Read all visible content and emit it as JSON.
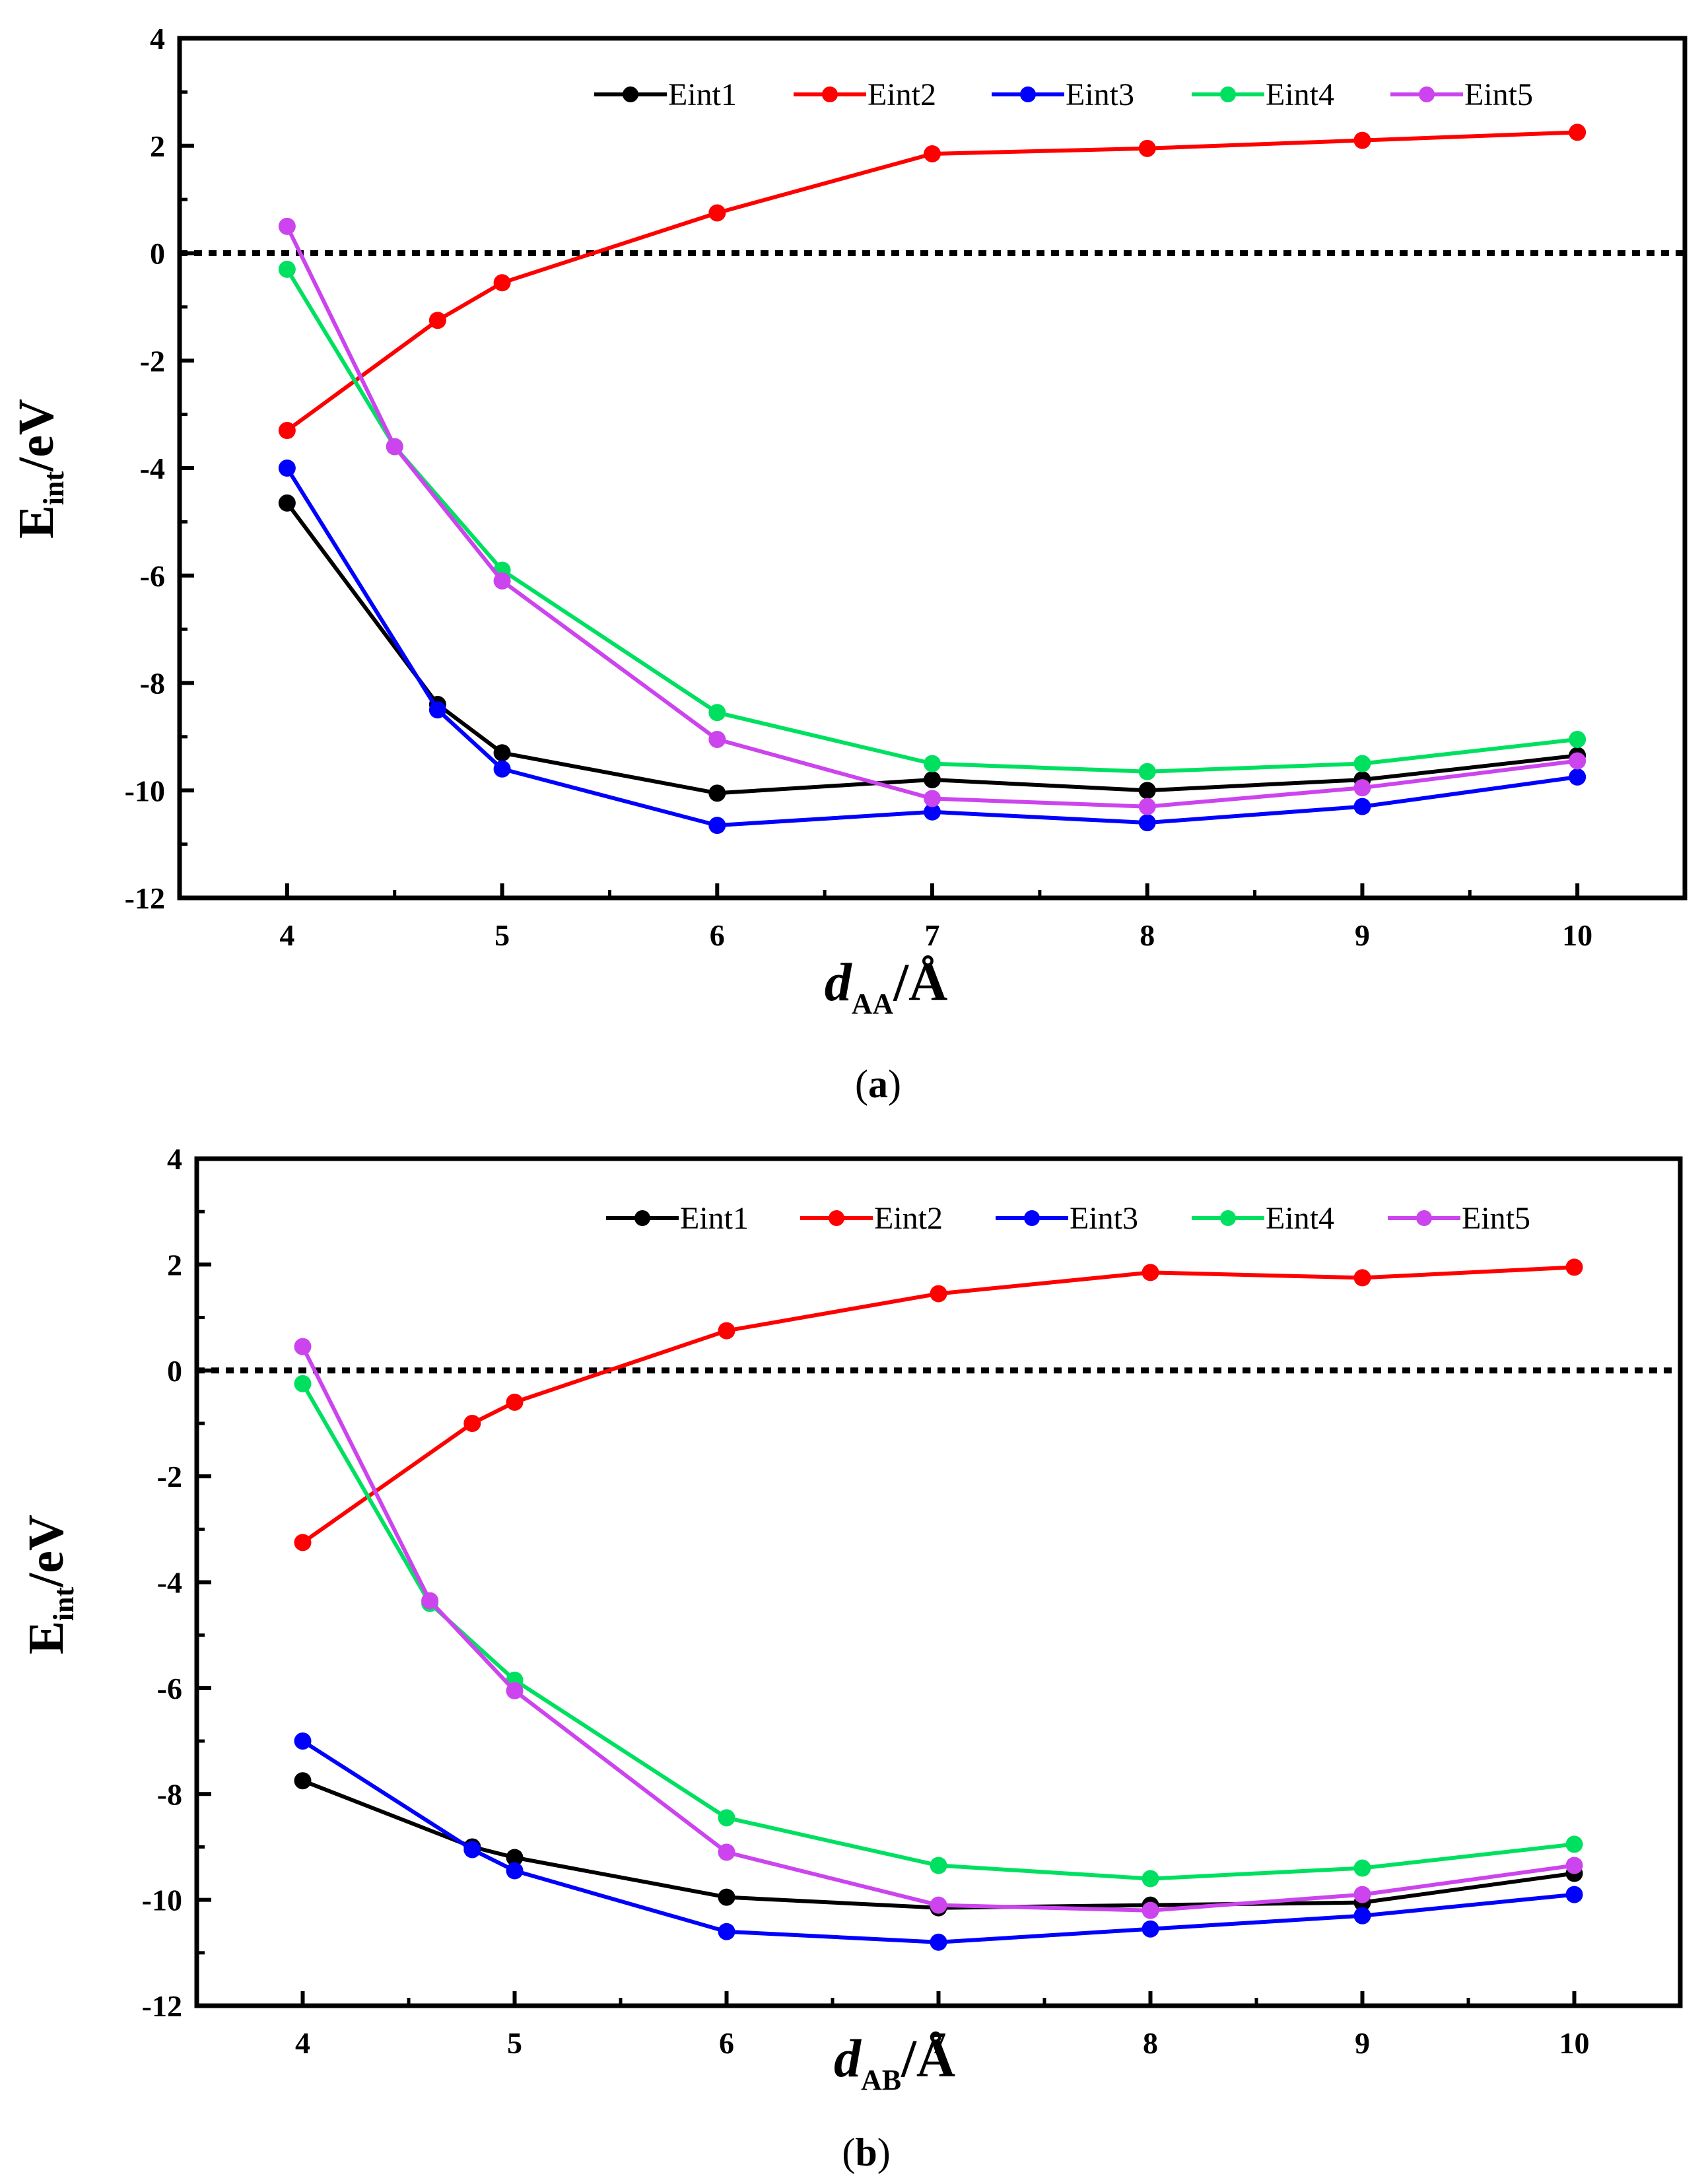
{
  "chart_data": [
    {
      "type": "line",
      "panel_label": "(a)",
      "caption_open": "(",
      "caption_letter": "a",
      "caption_close": ")",
      "xlabel_main": "d",
      "xlabel_sub": "AA",
      "xlabel_unit": "/Å",
      "ylabel_main": "E",
      "ylabel_sub": "int",
      "ylabel_unit": "/eV",
      "xlim": [
        3.5,
        10.5
      ],
      "ylim": [
        -12,
        4
      ],
      "xticks": [
        "4",
        "5",
        "6",
        "7",
        "8",
        "9",
        "10"
      ],
      "yticks": [
        "4",
        "2",
        "0",
        "-2",
        "-4",
        "-6",
        "-8",
        "-10",
        "-12"
      ],
      "reference_line": 0,
      "series": [
        {
          "name": "Eint1",
          "color": "#000000",
          "x": [
            4,
            4.7,
            5,
            6,
            7,
            8,
            9,
            10
          ],
          "values": [
            -4.65,
            -8.4,
            -9.3,
            -10.05,
            -9.8,
            -10.0,
            -9.8,
            -9.35
          ]
        },
        {
          "name": "Eint2",
          "color": "#ff0000",
          "x": [
            4,
            4.7,
            5,
            6,
            7,
            8,
            9,
            10
          ],
          "values": [
            -3.3,
            -1.25,
            -0.55,
            0.75,
            1.85,
            1.95,
            2.1,
            2.25
          ]
        },
        {
          "name": "Eint3",
          "color": "#0000ff",
          "x": [
            4,
            4.7,
            5,
            6,
            7,
            8,
            9,
            10
          ],
          "values": [
            -4.0,
            -8.5,
            -9.6,
            -10.65,
            -10.4,
            -10.6,
            -10.3,
            -9.75
          ]
        },
        {
          "name": "Eint4",
          "color": "#00e060",
          "x": [
            4,
            4.5,
            5,
            6,
            7,
            8,
            9,
            10
          ],
          "values": [
            -0.3,
            -3.6,
            -5.9,
            -8.55,
            -9.5,
            -9.65,
            -9.5,
            -9.05
          ]
        },
        {
          "name": "Eint5",
          "color": "#cc44ee",
          "x": [
            4,
            4.5,
            5,
            6,
            7,
            8,
            9,
            10
          ],
          "values": [
            0.5,
            -3.6,
            -6.1,
            -9.05,
            -10.15,
            -10.3,
            -9.95,
            -9.45
          ]
        }
      ]
    },
    {
      "type": "line",
      "panel_label": "(b)",
      "caption_open": "(",
      "caption_letter": "b",
      "caption_close": ")",
      "xlabel_main": "d",
      "xlabel_sub": "AB",
      "xlabel_unit": "/Å",
      "ylabel_main": "E",
      "ylabel_sub": "int",
      "ylabel_unit": "/eV",
      "xlim": [
        3.5,
        10.5
      ],
      "ylim": [
        -12,
        4
      ],
      "xticks": [
        "4",
        "5",
        "6",
        "7",
        "8",
        "9",
        "10"
      ],
      "yticks": [
        "4",
        "2",
        "0",
        "-2",
        "-4",
        "-6",
        "-8",
        "-10",
        "-12"
      ],
      "reference_line": 0,
      "series": [
        {
          "name": "Eint1",
          "color": "#000000",
          "x": [
            4,
            4.8,
            5,
            6,
            7,
            8,
            9,
            10
          ],
          "values": [
            -7.75,
            -9.0,
            -9.2,
            -9.95,
            -10.15,
            -10.1,
            -10.05,
            -9.5
          ]
        },
        {
          "name": "Eint2",
          "color": "#ff0000",
          "x": [
            4,
            4.8,
            5,
            6,
            7,
            8,
            9,
            10
          ],
          "values": [
            -3.25,
            -1.0,
            -0.6,
            0.75,
            1.45,
            1.85,
            1.75,
            1.95
          ]
        },
        {
          "name": "Eint3",
          "color": "#0000ff",
          "x": [
            4,
            4.8,
            5,
            6,
            7,
            8,
            9,
            10
          ],
          "values": [
            -7.0,
            -9.05,
            -9.45,
            -10.6,
            -10.8,
            -10.55,
            -10.3,
            -9.9
          ]
        },
        {
          "name": "Eint4",
          "color": "#00e060",
          "x": [
            4,
            4.6,
            5,
            6,
            7,
            8,
            9,
            10
          ],
          "values": [
            -0.25,
            -4.4,
            -5.85,
            -8.45,
            -9.35,
            -9.6,
            -9.4,
            -8.95
          ]
        },
        {
          "name": "Eint5",
          "color": "#cc44ee",
          "x": [
            4,
            4.6,
            5,
            6,
            7,
            8,
            9,
            10
          ],
          "values": [
            0.45,
            -4.35,
            -6.05,
            -9.1,
            -10.1,
            -10.2,
            -9.9,
            -9.35
          ]
        }
      ]
    }
  ]
}
